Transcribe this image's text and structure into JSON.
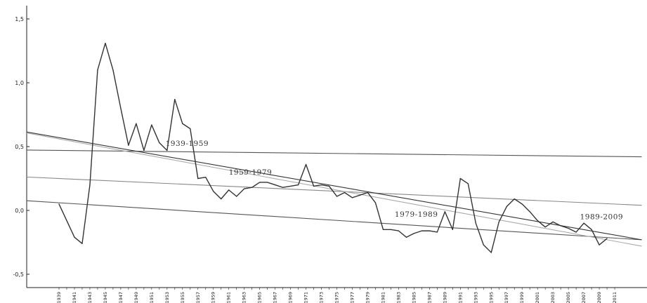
{
  "chart_data": {
    "type": "line",
    "title": "",
    "xlabel": "",
    "ylabel": "",
    "xlim": [
      1939,
      2015
    ],
    "ylim": [
      -0.6,
      1.6
    ],
    "yticks": [
      -0.5,
      0.0,
      0.5,
      1.0,
      1.5
    ],
    "ytick_labels": [
      "-0,5",
      "0,0",
      "0,5",
      "1,0",
      "1,5"
    ],
    "xtick_labels": [
      "1939",
      "1941",
      "1943",
      "1945",
      "1947",
      "1949",
      "1951",
      "1953",
      "1955",
      "1957",
      "1959",
      "1961",
      "1963",
      "1965",
      "1967",
      "1969",
      "1971",
      "1973",
      "1975",
      "1977",
      "1979",
      "1981",
      "1983",
      "1985",
      "1987",
      "1989",
      "1991",
      "1993",
      "1995",
      "1997",
      "1999",
      "2001",
      "2003",
      "2005",
      "2007",
      "2009",
      "2011"
    ],
    "grid": false,
    "legend": "none",
    "series": [
      {
        "x": [
          1939,
          1940,
          1941,
          1942,
          1943,
          1944,
          1945,
          1946,
          1947,
          1948,
          1949,
          1950,
          1951,
          1952,
          1953,
          1954,
          1955,
          1956,
          1957,
          1958,
          1959,
          1960,
          1961,
          1962,
          1963,
          1964,
          1965,
          1966,
          1967,
          1968,
          1969,
          1970,
          1971,
          1972,
          1973,
          1974,
          1975,
          1976,
          1977,
          1978,
          1979,
          1980,
          1981,
          1982,
          1983,
          1984,
          1985,
          1986,
          1987,
          1988,
          1989,
          1990,
          1991,
          1992,
          1993,
          1994,
          1995,
          1996,
          1997,
          1998,
          1999,
          2000,
          2001,
          2002,
          2003,
          2004,
          2005,
          2006,
          2007,
          2008,
          2009,
          2010
        ],
        "values": [
          0.05,
          -0.08,
          -0.21,
          -0.26,
          0.2,
          1.1,
          1.31,
          1.1,
          0.8,
          0.51,
          0.68,
          0.47,
          0.67,
          0.53,
          0.47,
          0.87,
          0.68,
          0.64,
          0.25,
          0.26,
          0.15,
          0.09,
          0.16,
          0.11,
          0.17,
          0.18,
          0.22,
          0.22,
          0.2,
          0.18,
          0.19,
          0.2,
          0.36,
          0.19,
          0.2,
          0.19,
          0.11,
          0.14,
          0.1,
          0.12,
          0.14,
          0.06,
          -0.15,
          -0.15,
          -0.16,
          -0.21,
          -0.18,
          -0.16,
          -0.16,
          -0.17,
          -0.01,
          -0.15,
          0.25,
          0.21,
          -0.1,
          -0.27,
          -0.33,
          -0.09,
          0.03,
          0.09,
          0.05,
          -0.01,
          -0.08,
          -0.13,
          -0.09,
          -0.12,
          -0.14,
          -0.17,
          -0.1,
          -0.15,
          -0.27,
          -0.22
        ],
        "color": "#333333"
      }
    ],
    "trend_lines": [
      {
        "label": "1939-1959",
        "start": [
          1939,
          0.47
        ],
        "end": [
          2014.5,
          0.42
        ],
        "color": "#555555",
        "label_at": [
          1952.8,
          0.505
        ]
      },
      {
        "label": "1959-1979",
        "start": [
          1939,
          0.25
        ],
        "end": [
          2014.5,
          0.04
        ],
        "color": "#888888",
        "label_at": [
          1961.0,
          0.28
        ]
      },
      {
        "label": "1979-1989",
        "start": [
          1939,
          0.06
        ],
        "end": [
          2014.5,
          -0.23
        ],
        "color": "#555555",
        "label_at": [
          1982.5,
          -0.05
        ]
      },
      {
        "label": "1989-2009",
        "start": [
          1939,
          0.57
        ],
        "end": [
          2014.5,
          -0.23
        ],
        "color": "#333333",
        "label_at": [
          2006.5,
          -0.07
        ]
      },
      {
        "label": "",
        "start": [
          1939,
          0.56
        ],
        "end": [
          2014.5,
          -0.28
        ],
        "color": "#aaaaaa",
        "label_at": null
      }
    ]
  }
}
